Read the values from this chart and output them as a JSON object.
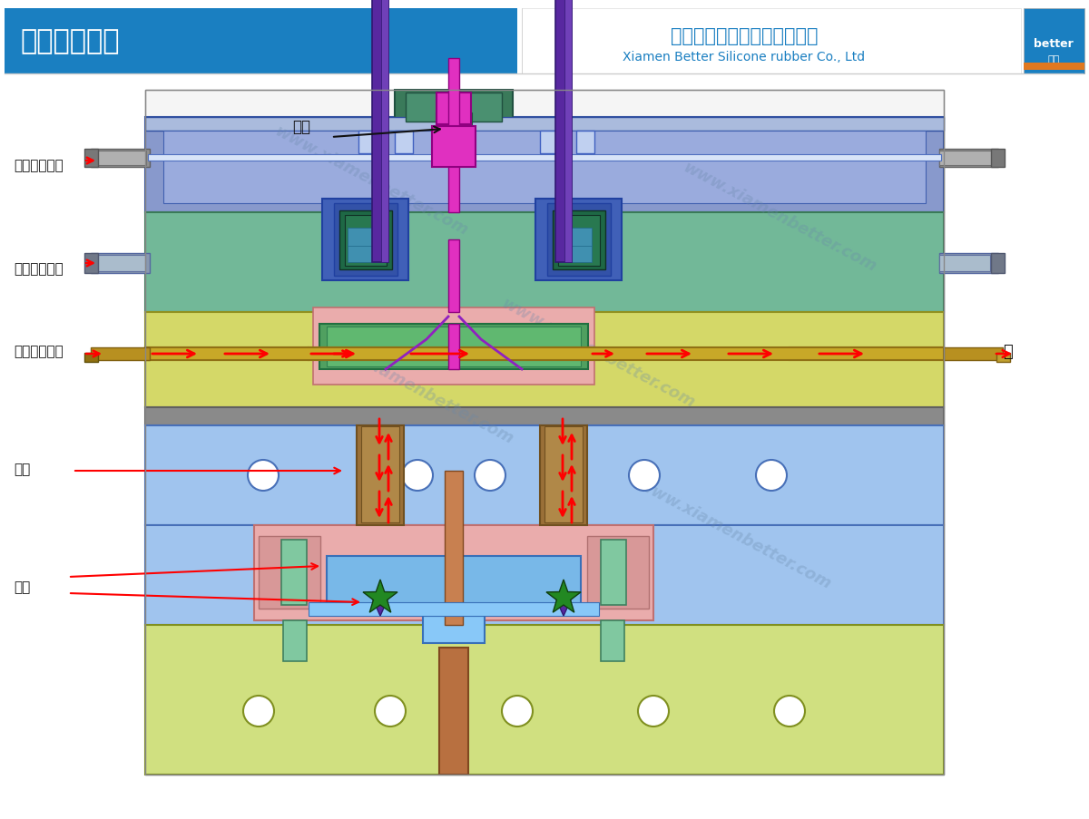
{
  "title": "针阀式冷流道",
  "company_cn": "厦门贝腾硅橡胶制品有限公司",
  "company_en": "Xiamen Better Silicone rubber Co., Ltd",
  "watermark": "www.xiamenbetter.com",
  "header_bg": "#1a7fc1",
  "labels": {
    "liudao": "流道",
    "chuiqi_fengjiao": "吹气（封胶）",
    "chuiqi_jinjiao": "吹气（进胶）",
    "lengjingshui_jin": "冷却水（进）",
    "chu": "出",
    "lengjui": "冷嘴",
    "chanpin": "产品"
  }
}
